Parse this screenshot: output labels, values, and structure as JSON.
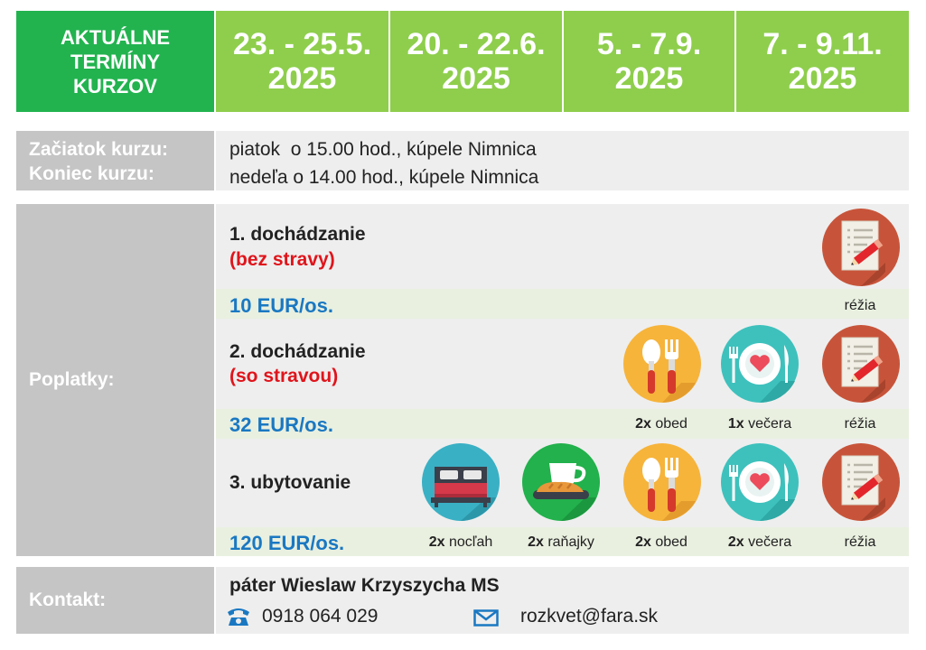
{
  "header": {
    "title_lines": [
      "AKTUÁLNE",
      "TERMÍNY",
      "KURZOV"
    ],
    "dates": [
      {
        "range": "23. - 25.5.",
        "year": "2025"
      },
      {
        "range": "20. - 22.6.",
        "year": "2025"
      },
      {
        "range": "5. - 7.9.",
        "year": "2025"
      },
      {
        "range": "7. - 9.11.",
        "year": "2025"
      }
    ]
  },
  "schedule": {
    "start_label": "Začiatok kurzu:",
    "end_label": "Koniec kurzu:",
    "start_value": "piatok  o 15.00 hod., kúpele Nimnica",
    "end_value": "nedeľa o 14.00 hod., kúpele Nimnica"
  },
  "fees": {
    "label": "Poplatky:",
    "options": [
      {
        "title": "1. dochádzanie",
        "note": "(bez stravy)",
        "price": "10 EUR/os.",
        "items": [
          {
            "icon": "registration-icon",
            "count": "",
            "label": "réžia"
          }
        ]
      },
      {
        "title": "2. dochádzanie",
        "note": "(so stravou)",
        "price": "32 EUR/os.",
        "items": [
          {
            "icon": "lunch-icon",
            "count": "2x",
            "label": "obed"
          },
          {
            "icon": "dinner-icon",
            "count": "1x",
            "label": "večera"
          },
          {
            "icon": "registration-icon",
            "count": "",
            "label": "réžia"
          }
        ]
      },
      {
        "title": "3. ubytovanie",
        "note": "",
        "price": "120 EUR/os.",
        "items": [
          {
            "icon": "bed-icon",
            "count": "2x",
            "label": "nocľah"
          },
          {
            "icon": "breakfast-icon",
            "count": "2x",
            "label": "raňajky"
          },
          {
            "icon": "lunch-icon",
            "count": "2x",
            "label": "obed"
          },
          {
            "icon": "dinner-icon",
            "count": "2x",
            "label": "večera"
          },
          {
            "icon": "registration-icon",
            "count": "",
            "label": "réžia"
          }
        ]
      }
    ]
  },
  "contact": {
    "label": "Kontakt:",
    "name": "páter Wieslaw Krzyszycha MS",
    "phone": "0918 064 029",
    "email": "rozkvet@fara.sk"
  },
  "colors": {
    "header_green": "#22b34f",
    "date_green": "#8ece4c",
    "label_grey": "#c5c5c5",
    "price_blue": "#1a78c2",
    "note_red": "#e0141b"
  }
}
